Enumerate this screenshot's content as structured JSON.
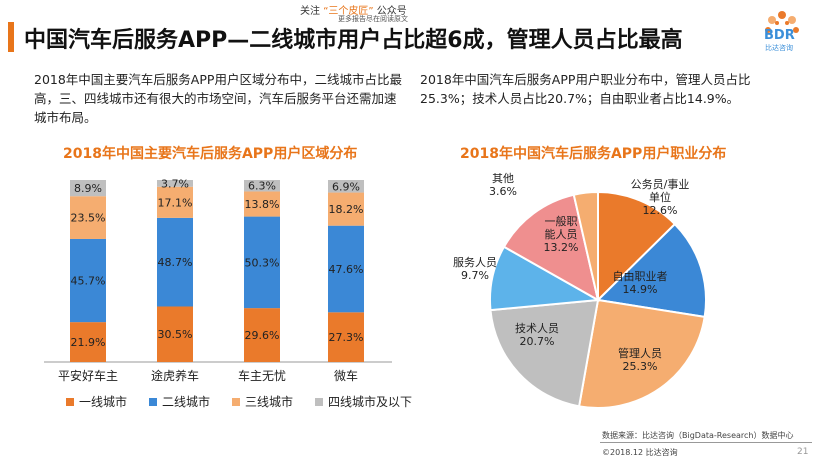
{
  "header": {
    "title": "中国汽车后服务APP—二线城市用户占比超6成，管理人员占比最高",
    "brand_prefix": "关注",
    "brand_highlight": "“三个皮匠”",
    "brand_suffix": "公众号",
    "brand_sub": "更多报告尽在阅读原文",
    "logo_text": "BDR",
    "logo_sub": "比达咨询"
  },
  "colors": {
    "accent": "#e8751a",
    "orange": "#ea7a2b",
    "blue": "#3b88d6",
    "light_orange": "#f5ad70",
    "gray": "#bfbfbf",
    "pink": "#ef8f8f",
    "light_blue": "#5db3ea"
  },
  "left_text": "2018年中国主要汽车后服务APP用户区域分布中，二线城市占比最高，三、四线城市还有很大的市场空间，汽车后服务平台还需加速城市布局。",
  "right_text": "2018年中国汽车后服务APP用户职业分布中，管理人员占比25.3%；技术人员占比20.7%；自由职业者占比14.9%。",
  "chart_data": [
    {
      "type": "bar",
      "stacked": true,
      "title": "2018年中国主要汽车后服务APP用户区域分布",
      "categories": [
        "平安好车主",
        "途虎养车",
        "车主无忧",
        "微车"
      ],
      "series": [
        {
          "name": "一线城市",
          "values": [
            21.9,
            30.5,
            29.6,
            27.3
          ],
          "color": "#ea7a2b"
        },
        {
          "name": "二线城市",
          "values": [
            45.7,
            48.7,
            50.3,
            47.6
          ],
          "color": "#3b88d6"
        },
        {
          "name": "三线城市",
          "values": [
            23.5,
            17.1,
            13.8,
            18.2
          ],
          "color": "#f5ad70"
        },
        {
          "name": "四线城市及以下",
          "values": [
            8.9,
            3.7,
            6.3,
            6.9
          ],
          "color": "#bfbfbf"
        }
      ],
      "labels": [
        [
          "21.9%",
          "45.7%",
          "23.5%",
          "8.9%"
        ],
        [
          "30.5%",
          "48.7%",
          "17.1%",
          "3.7%"
        ],
        [
          "29.6%",
          "50.3%",
          "13.8%",
          "6.3%"
        ],
        [
          "27.3%",
          "47.6%",
          "18.2%",
          "6.9%"
        ]
      ],
      "ylim": [
        0,
        100
      ],
      "legend": "bottom"
    },
    {
      "type": "pie",
      "title": "2018年中国汽车后服务APP用户职业分布",
      "slices": [
        {
          "name": "公务员/事业单位",
          "value": 12.6,
          "label_lines": [
            "公务员/事业",
            "单位",
            "12.6%"
          ],
          "color": "#ea7a2b"
        },
        {
          "name": "自由职业者",
          "value": 14.9,
          "label_lines": [
            "自由职业者",
            "14.9%"
          ],
          "color": "#3b88d6"
        },
        {
          "name": "管理人员",
          "value": 25.3,
          "label_lines": [
            "管理人员",
            "25.3%"
          ],
          "color": "#f5ad70"
        },
        {
          "name": "技术人员",
          "value": 20.7,
          "label_lines": [
            "技术人员",
            "20.7%"
          ],
          "color": "#bfbfbf"
        },
        {
          "name": "服务人员",
          "value": 9.7,
          "label_lines": [
            "服务人员",
            "9.7%"
          ],
          "color": "#5db3ea"
        },
        {
          "name": "一般职能人员",
          "value": 13.2,
          "label_lines": [
            "一般职",
            "能人员",
            "13.2%"
          ],
          "color": "#ef8f8f"
        },
        {
          "name": "其他",
          "value": 3.6,
          "label_lines": [
            "其他",
            "3.6%"
          ],
          "color": "#f5ad70"
        }
      ]
    }
  ],
  "footer": {
    "source": "数据来源：比达咨询（BigData-Research）数据中心",
    "copyright": "©2018.12  比达咨询",
    "page": "21"
  }
}
